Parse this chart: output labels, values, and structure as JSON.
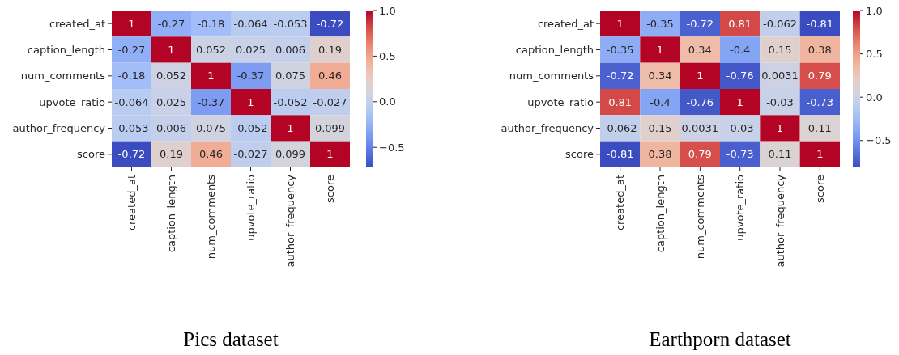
{
  "chart_data": [
    {
      "type": "heatmap",
      "title": "Pics dataset",
      "categories": [
        "created_at",
        "caption_length",
        "num_comments",
        "upvote_ratio",
        "author_frequency",
        "score"
      ],
      "y_categories": [
        "created_at",
        "caption_length",
        "num_comments",
        "upvote_ratio",
        "author_frequency",
        "score"
      ],
      "cells": [
        [
          1,
          -0.27,
          -0.18,
          -0.064,
          -0.053,
          -0.72
        ],
        [
          -0.27,
          1,
          0.052,
          0.025,
          0.006,
          0.19
        ],
        [
          -0.18,
          0.052,
          1,
          -0.37,
          0.075,
          0.46
        ],
        [
          -0.064,
          0.025,
          -0.37,
          1,
          -0.052,
          -0.027
        ],
        [
          -0.053,
          0.006,
          0.075,
          -0.052,
          1,
          0.099
        ],
        [
          -0.72,
          0.19,
          0.46,
          -0.027,
          0.099,
          1
        ]
      ],
      "clim": [
        -0.72,
        1
      ],
      "cticks": [
        {
          "value": -0.5,
          "label": "−0.5"
        },
        {
          "value": 0,
          "label": "0.0"
        },
        {
          "value": 0.5,
          "label": "0.5"
        },
        {
          "value": 1,
          "label": "1.0"
        }
      ],
      "data_labels": true
    },
    {
      "type": "heatmap",
      "title": "Earthporn dataset",
      "categories": [
        "created_at",
        "caption_length",
        "num_comments",
        "upvote_ratio",
        "author_frequency",
        "score"
      ],
      "y_categories": [
        "created_at",
        "caption_length",
        "num_comments",
        "upvote_ratio",
        "author_frequency",
        "score"
      ],
      "cells": [
        [
          1,
          -0.35,
          -0.72,
          0.81,
          -0.062,
          -0.81
        ],
        [
          -0.35,
          1,
          0.34,
          -0.4,
          0.15,
          0.38
        ],
        [
          -0.72,
          0.34,
          1,
          -0.76,
          0.0031,
          0.79
        ],
        [
          0.81,
          -0.4,
          -0.76,
          1,
          -0.03,
          -0.73
        ],
        [
          -0.062,
          0.15,
          0.0031,
          -0.03,
          1,
          0.11
        ],
        [
          -0.81,
          0.38,
          0.79,
          -0.73,
          0.11,
          1
        ]
      ],
      "clim": [
        -0.81,
        1
      ],
      "cticks": [
        {
          "value": -0.5,
          "label": "−0.5"
        },
        {
          "value": 0,
          "label": "0.0"
        },
        {
          "value": 0.5,
          "label": "0.5"
        },
        {
          "value": 1,
          "label": "1.0"
        }
      ],
      "data_labels": true
    }
  ]
}
